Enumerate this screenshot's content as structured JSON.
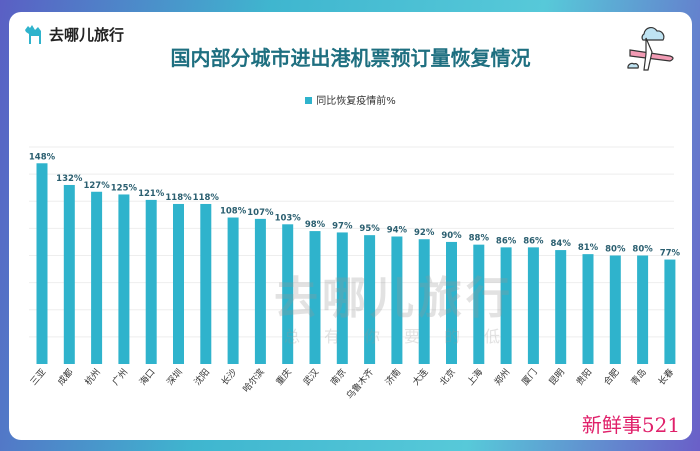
{
  "logo": {
    "text": "去哪儿旅行"
  },
  "watermark": {
    "text": "去哪儿旅行",
    "sub": "总有你要的低"
  },
  "stamp": {
    "text": "新鲜事521"
  },
  "chart_data": {
    "type": "bar",
    "title": "国内部分城市进出港机票预订量恢复情况",
    "legend": "同比恢复疫情前%",
    "legend_position": "top",
    "categories": [
      "三亚",
      "成都",
      "杭州",
      "广州",
      "海口",
      "深圳",
      "沈阳",
      "长沙",
      "哈尔滨",
      "重庆",
      "武汉",
      "南京",
      "乌鲁木齐",
      "济南",
      "大连",
      "北京",
      "上海",
      "郑州",
      "厦门",
      "昆明",
      "贵阳",
      "合肥",
      "青岛",
      "长春"
    ],
    "series": [
      {
        "name": "同比恢复疫情前%",
        "values": [
          148,
          132,
          127,
          125,
          121,
          118,
          118,
          108,
          107,
          103,
          98,
          97,
          95,
          94,
          92,
          90,
          88,
          86,
          86,
          84,
          81,
          80,
          80,
          77
        ]
      }
    ],
    "data_labels": [
      "148%",
      "132%",
      "127%",
      "125%",
      "121%",
      "118%",
      "118%",
      "108%",
      "107%",
      "103%",
      "98%",
      "97%",
      "95%",
      "94%",
      "92%",
      "90%",
      "88%",
      "86%",
      "86%",
      "84%",
      "81%",
      "80%",
      "80%",
      "77%"
    ],
    "ylim": [
      0,
      160
    ],
    "grid": true,
    "color": "#2fb3cc",
    "label_color": "#2b5f70"
  }
}
